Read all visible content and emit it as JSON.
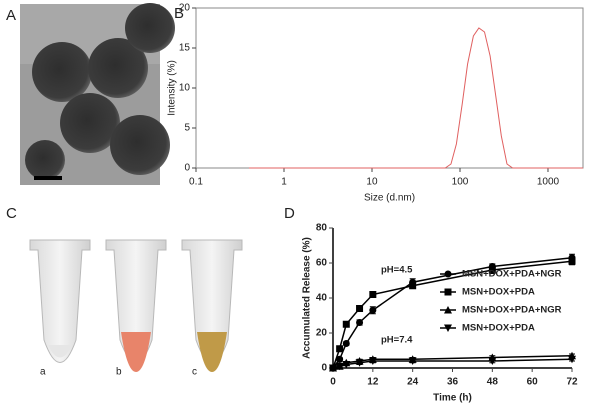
{
  "panel_labels": [
    "A",
    "B",
    "C",
    "D"
  ],
  "tube_labels": [
    "a",
    "b",
    "c"
  ],
  "chart_data": [
    {
      "type": "line",
      "xlabel": "Size (d.nm)",
      "ylabel": "Intensity (%)",
      "xscale": "log",
      "frame": true,
      "color": "#e06060",
      "x": [
        0.4,
        1,
        10,
        68,
        79,
        91,
        106,
        122,
        142,
        164,
        190,
        220,
        255,
        295,
        342,
        396,
        459,
        1000,
        2500
      ],
      "values": [
        0,
        0,
        0,
        0,
        0.5,
        3,
        8,
        13,
        16.5,
        17.5,
        17,
        14,
        9,
        4,
        0.5,
        0,
        0,
        0,
        0
      ],
      "xlim": [
        0.1,
        2500
      ],
      "xticks": [
        0.1,
        1,
        10,
        100,
        1000
      ],
      "ylim": [
        0,
        20
      ],
      "yticks": [
        0,
        5,
        10,
        15,
        20
      ]
    },
    {
      "type": "line",
      "xlabel": "Time (h)",
      "ylabel": "Accumulated Release (%)",
      "frame": false,
      "legend": "center-right",
      "annotations": [
        "pH=4.5",
        "pH=7.4"
      ],
      "x": [
        0,
        2,
        4,
        8,
        12,
        24,
        48,
        72
      ],
      "series": [
        {
          "name": "MSN+DOX+PDA+NGR",
          "color": "#000000",
          "marker": "circle",
          "values": [
            0,
            5,
            14,
            26,
            33,
            49,
            58,
            63
          ],
          "errors": [
            0,
            1,
            1,
            1.5,
            2,
            2,
            1.5,
            2
          ]
        },
        {
          "name": "MSN+DOX+PDA",
          "color": "#000000",
          "marker": "square",
          "values": [
            0,
            11,
            25,
            34,
            42,
            47,
            56,
            61
          ],
          "errors": [
            0,
            1,
            1,
            1,
            1,
            1.5,
            2,
            2
          ]
        },
        {
          "name": "MSN+DOX+PDA+NGR",
          "color": "#000000",
          "marker": "triangle-up",
          "values": [
            0,
            1,
            3,
            4,
            5,
            5,
            6,
            7
          ],
          "errors": [
            0,
            0.5,
            0.5,
            1,
            1,
            1,
            1,
            1
          ]
        },
        {
          "name": "MSN+DOX+PDA",
          "color": "#000000",
          "marker": "triangle-down",
          "values": [
            0,
            1,
            2,
            3,
            4,
            4,
            4,
            5
          ],
          "errors": [
            0,
            0.5,
            0.5,
            1,
            1,
            1,
            1,
            1
          ]
        }
      ],
      "xlim": [
        0,
        72
      ],
      "xticks": [
        0,
        12,
        24,
        36,
        48,
        60,
        72
      ],
      "ylim": [
        0,
        80
      ],
      "yticks": [
        0,
        20,
        40,
        60,
        80
      ]
    }
  ]
}
